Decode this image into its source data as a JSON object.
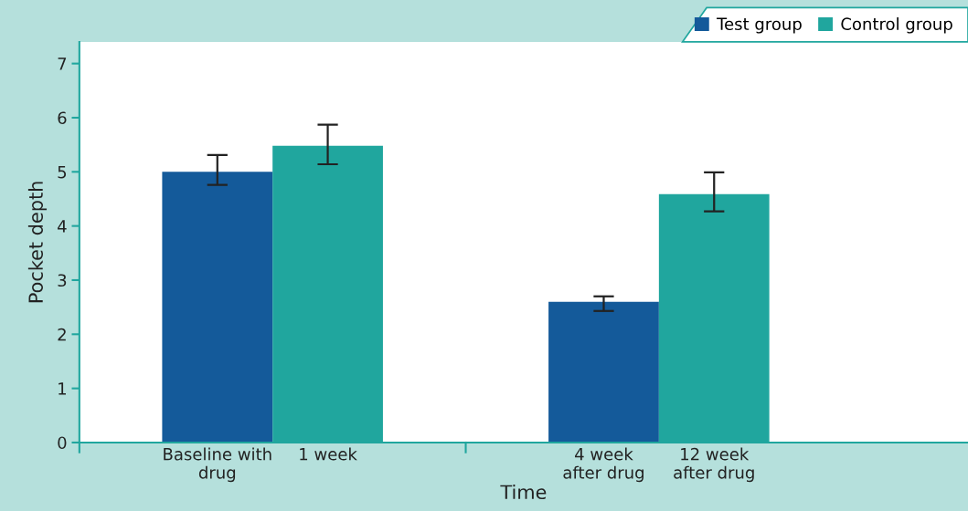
{
  "chart_data": {
    "type": "bar",
    "xlabel": "Time",
    "ylabel": "Pocket depth",
    "categories": [
      "Baseline with\ndrug",
      "1 week",
      "4 week\nafter drug",
      "12 week\nafter drug"
    ],
    "series": [
      {
        "name": "Test group",
        "color": "#145a9a",
        "values": [
          5.0,
          null,
          2.6,
          null
        ],
        "errors": [
          [
            4.76,
            5.31
          ],
          null,
          [
            2.43,
            2.7
          ],
          null
        ]
      },
      {
        "name": "Control group",
        "color": "#20a69e",
        "values": [
          null,
          5.48,
          null,
          4.59
        ],
        "errors": [
          null,
          [
            5.14,
            5.87
          ],
          null,
          [
            4.27,
            4.99
          ]
        ]
      }
    ],
    "ylim": [
      0,
      7.4
    ],
    "yticks": [
      0,
      1,
      2,
      3,
      4,
      5,
      6,
      7
    ],
    "grid": false,
    "legend": "top right"
  }
}
